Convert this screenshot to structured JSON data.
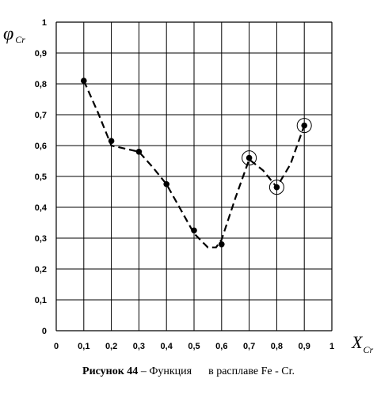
{
  "chart_data": {
    "type": "line",
    "title": "",
    "ylabel_symbol": "φ",
    "ylabel_sub": "Cr",
    "xlabel_symbol": "X",
    "xlabel_sub": "Cr",
    "xlim": [
      0,
      1
    ],
    "ylim": [
      0,
      1
    ],
    "x_ticks": [
      "0",
      "0,1",
      "0,2",
      "0,3",
      "0,4",
      "0,5",
      "0,6",
      "0,7",
      "0,8",
      "0,9",
      "1"
    ],
    "y_ticks": [
      "0",
      "0,1",
      "0,2",
      "0,3",
      "0,4",
      "0,5",
      "0,6",
      "0,7",
      "0,8",
      "0,9",
      "1"
    ],
    "grid": true,
    "series": [
      {
        "style": "points",
        "x": [
          0.1,
          0.2,
          0.3,
          0.4,
          0.5,
          0.6,
          0.7,
          0.8,
          0.9
        ],
        "y": [
          0.81,
          0.615,
          0.58,
          0.475,
          0.325,
          0.28,
          0.56,
          0.465,
          0.665
        ]
      },
      {
        "style": "dashed-curve",
        "x": [
          0.1,
          0.15,
          0.2,
          0.25,
          0.3,
          0.35,
          0.4,
          0.45,
          0.5,
          0.55,
          0.58,
          0.6,
          0.65,
          0.7,
          0.75,
          0.8,
          0.85,
          0.9
        ],
        "y": [
          0.81,
          0.71,
          0.6,
          0.59,
          0.58,
          0.53,
          0.475,
          0.395,
          0.315,
          0.27,
          0.27,
          0.295,
          0.43,
          0.555,
          0.52,
          0.465,
          0.54,
          0.665
        ]
      }
    ],
    "circled_points": [
      {
        "x": 0.7,
        "y": 0.56
      },
      {
        "x": 0.8,
        "y": 0.465
      },
      {
        "x": 0.9,
        "y": 0.665
      }
    ]
  },
  "caption": {
    "label": "Рисунок 44",
    "text": " – Функция      в расплаве Fe - Cr."
  }
}
